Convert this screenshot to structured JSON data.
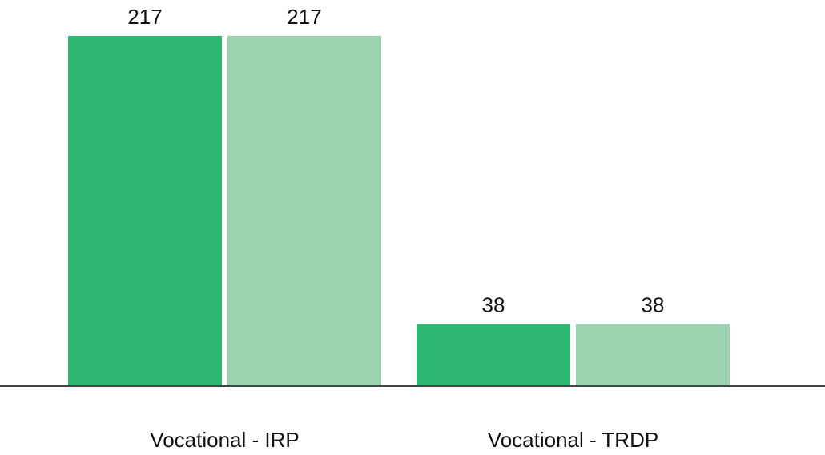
{
  "chart_data": {
    "type": "bar",
    "categories": [
      "Vocational - IRP",
      "Vocational - TRDP"
    ],
    "series": [
      {
        "color": "#2eb872",
        "values": [
          217,
          38
        ]
      },
      {
        "color": "#9bd3b0",
        "values": [
          217,
          38
        ]
      }
    ],
    "ylim": [
      0,
      217
    ]
  }
}
